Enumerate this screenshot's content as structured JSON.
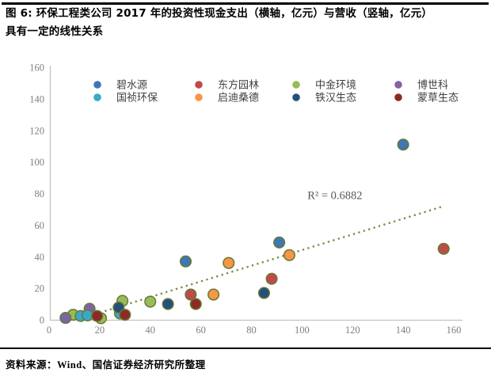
{
  "figure": {
    "title_line1": "图 6: 环保工程类公司 2017 年的投资性现金支出（横轴，亿元）与营收（竖轴，亿元）",
    "title_line2": "具有一定的线性关系"
  },
  "footer": {
    "source": "资料来源：Wind、国信证券经济研究所整理"
  },
  "chart_data": {
    "type": "scatter",
    "title": "",
    "xlabel": "",
    "ylabel": "",
    "xlim": [
      0,
      160
    ],
    "ylim": [
      0,
      160
    ],
    "xticks": [
      0,
      20,
      40,
      60,
      80,
      100,
      120,
      140,
      160
    ],
    "yticks": [
      0,
      20,
      40,
      60,
      80,
      100,
      120,
      140,
      160
    ],
    "grid": false,
    "legend_position": "top-inside",
    "marker_edge_color": "#667A34",
    "axis_line_color": "#C2C2C2",
    "tick_label_color": "#7F7F7F",
    "legend_text_color": "#3F3F3F",
    "series": [
      {
        "name": "碧水源",
        "color": "#3F76B5",
        "points": [
          [
            54,
            37
          ],
          [
            91,
            49
          ],
          [
            140,
            111
          ]
        ]
      },
      {
        "name": "东方园林",
        "color": "#BE4B48",
        "points": [
          [
            56,
            16
          ],
          [
            88,
            26
          ],
          [
            156,
            45
          ]
        ]
      },
      {
        "name": "中金环境",
        "color": "#9BBB59",
        "points": [
          [
            9.5,
            3.2
          ],
          [
            20.5,
            1
          ],
          [
            29,
            12
          ],
          [
            40,
            11.5
          ]
        ]
      },
      {
        "name": "博世科",
        "color": "#7F63A5",
        "points": [
          [
            6.5,
            1.2
          ],
          [
            16,
            7
          ]
        ]
      },
      {
        "name": "国祯环保",
        "color": "#3DA7C6",
        "points": [
          [
            12.5,
            2.4
          ],
          [
            15.2,
            2.8
          ],
          [
            28,
            4
          ]
        ]
      },
      {
        "name": "启迪桑德",
        "color": "#F79646",
        "points": [
          [
            65,
            16
          ],
          [
            71,
            36
          ],
          [
            95,
            41
          ]
        ]
      },
      {
        "name": "铁汉生态",
        "color": "#24507C",
        "points": [
          [
            27.5,
            7.8
          ],
          [
            47,
            10
          ],
          [
            85,
            17
          ]
        ]
      },
      {
        "name": "蒙草生态",
        "color": "#8E2A25",
        "points": [
          [
            19,
            2.4
          ],
          [
            30,
            3.2
          ],
          [
            58,
            10
          ]
        ]
      }
    ],
    "trendline": {
      "style": "dotted",
      "color": "#77933C",
      "x1": 14,
      "y1": 1.5,
      "x2": 156,
      "y2": 72
    },
    "annotation": {
      "text": "R² = 0.6882",
      "x": 113,
      "y": 79,
      "color": "#595959"
    }
  }
}
